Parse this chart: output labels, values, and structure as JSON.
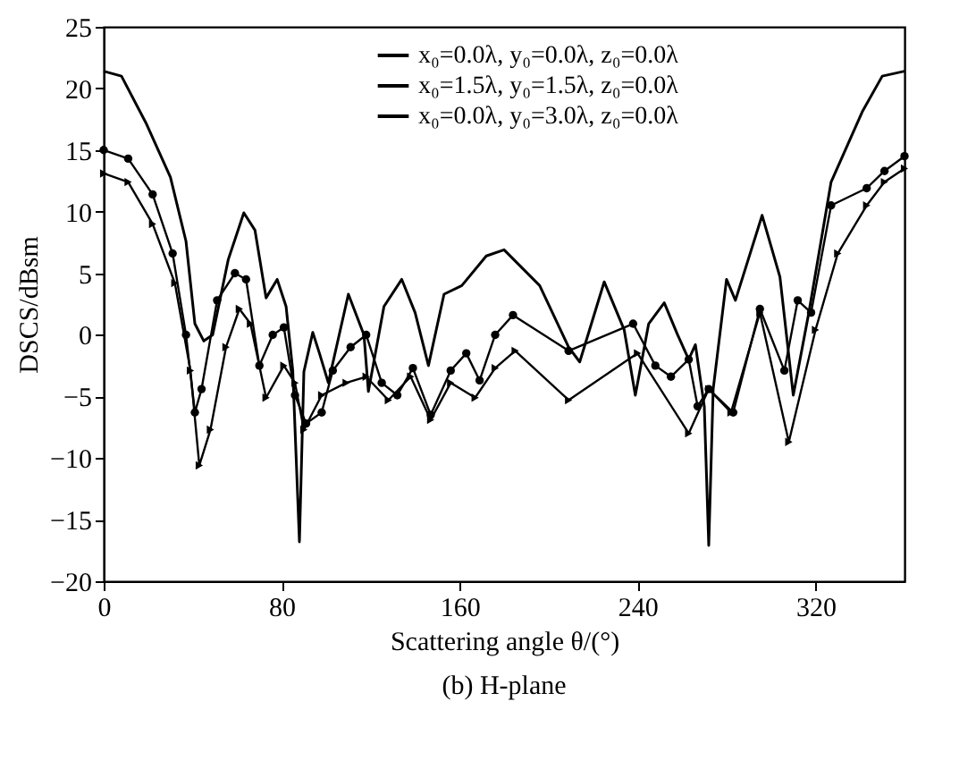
{
  "chart_data": {
    "type": "line",
    "title": "(b) H-plane",
    "xlabel": "Scattering angle θ/(°)",
    "ylabel": "DSCS/dBsm",
    "xlim": [
      0,
      360
    ],
    "xticks": [
      0,
      80,
      160,
      240,
      320
    ],
    "ylim": [
      -20,
      25
    ],
    "yticks": [
      -20,
      -15,
      -10,
      -5,
      0,
      5,
      10,
      15,
      20,
      25
    ],
    "grid": false,
    "legend": "top right",
    "line_style": "solid",
    "series": [
      {
        "name": "x₀=0.0λ, y₀=0.0λ, z₀=0.0λ",
        "color": "#000000",
        "marker": "none",
        "x": [
          0,
          8,
          19,
          30,
          37,
          41,
          45,
          49,
          56,
          63,
          68,
          73,
          78,
          82,
          85,
          88,
          90,
          94,
          97,
          101,
          110,
          117,
          119,
          126,
          134,
          140,
          146,
          153,
          161,
          172,
          180,
          196,
          209,
          214,
          225,
          234,
          239,
          245,
          252,
          258,
          263,
          266,
          270,
          272,
          274,
          280,
          284,
          296,
          304,
          310,
          317,
          327,
          341,
          350,
          360
        ],
        "values": [
          21.4,
          21,
          17.2,
          12.8,
          7.6,
          0.9,
          -0.5,
          0,
          6.1,
          9.9,
          8.5,
          3.0,
          4.5,
          2.3,
          -2.9,
          -16.8,
          -3,
          0.2,
          -1.5,
          -3.9,
          3.3,
          0,
          -4.6,
          2.3,
          4.5,
          1.8,
          -2.5,
          3.3,
          4.0,
          6.4,
          6.9,
          4.0,
          -1.0,
          -2.2,
          4.3,
          0.4,
          -4.9,
          0.9,
          2.6,
          0,
          -2.0,
          -0.8,
          -5.8,
          -17.1,
          -4.4,
          4.5,
          2.8,
          9.7,
          4.7,
          -4.9,
          1.8,
          12.4,
          18.1,
          21,
          21.4
        ]
      },
      {
        "name": "x₀=1.5λ, y₀=1.5λ, z₀=0.0λ",
        "color": "#000000",
        "marker": "circle",
        "x": [
          0,
          11,
          22,
          31,
          37,
          41,
          44,
          51,
          59,
          64,
          70,
          76,
          81,
          86,
          91,
          98,
          103,
          111,
          118,
          125,
          132,
          139,
          147,
          156,
          163,
          169,
          176,
          184,
          209,
          238,
          248,
          255,
          263,
          267,
          272,
          283,
          295,
          306,
          312,
          318,
          327,
          343,
          351,
          360
        ],
        "values": [
          15.0,
          14.3,
          11.4,
          6.6,
          0,
          -6.3,
          -4.4,
          2.8,
          5.0,
          4.5,
          -2.5,
          0,
          0.6,
          -4.9,
          -7.2,
          -6.3,
          -2.9,
          -1.0,
          0,
          -3.9,
          -4.9,
          -2.7,
          -6.5,
          -2.9,
          -1.5,
          -3.7,
          0,
          1.6,
          -1.3,
          0.9,
          -2.5,
          -3.4,
          -2.0,
          -5.8,
          -4.4,
          -6.3,
          2.1,
          -2.9,
          2.8,
          1.8,
          10.5,
          11.9,
          13.3,
          14.5
        ]
      },
      {
        "name": "x₀=0.0λ, y₀=3.0λ, z₀=0.0λ",
        "color": "#000000",
        "marker": "triangle",
        "x": [
          0,
          11,
          22,
          32,
          39,
          43,
          48,
          55,
          61,
          66,
          73,
          81,
          86,
          90,
          98,
          109,
          118,
          128,
          138,
          147,
          156,
          167,
          176,
          185,
          209,
          240,
          263,
          272,
          282,
          295,
          308,
          320,
          330,
          343,
          351,
          360
        ],
        "values": [
          13.1,
          12.4,
          9.0,
          4.2,
          -2.9,
          -10.6,
          -7.7,
          -1.0,
          2.1,
          0.9,
          -5.1,
          -2.5,
          -3.9,
          -7.7,
          -4.9,
          -3.9,
          -3.4,
          -5.3,
          -3.4,
          -6.9,
          -3.9,
          -5.1,
          -2.7,
          -1.3,
          -5.3,
          -1.5,
          -8.0,
          -4.4,
          -6.3,
          1.8,
          -8.7,
          0.4,
          6.6,
          10.5,
          12.4,
          13.5
        ]
      }
    ]
  }
}
